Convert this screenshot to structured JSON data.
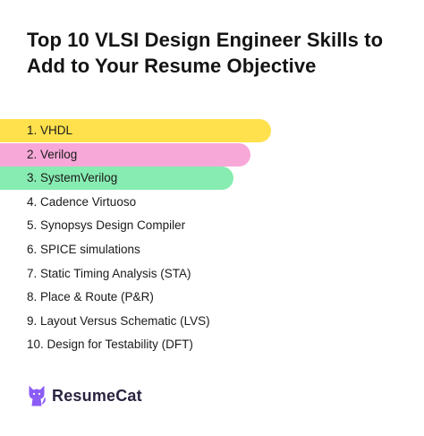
{
  "title": "Top 10 VLSI Design Engineer Skills to Add to Your Resume Objective",
  "skills": [
    {
      "label": "1. VHDL",
      "color": "#ffe14d",
      "fill": 0.64
    },
    {
      "label": "2. Verilog",
      "color": "#f7a8d8",
      "fill": 0.59
    },
    {
      "label": "3. SystemVerilog",
      "color": "#87ecb1",
      "fill": 0.55
    },
    {
      "label": "4. Cadence Virtuoso"
    },
    {
      "label": "5. Synopsys Design Compiler"
    },
    {
      "label": "6. SPICE simulations"
    },
    {
      "label": "7. Static Timing Analysis (STA)"
    },
    {
      "label": "8. Place & Route (P&R)"
    },
    {
      "label": "9. Layout Versus Schematic (LVS)"
    },
    {
      "label": "10. Design for Testability (DFT)"
    }
  ],
  "brand": {
    "name": "ResumeCat",
    "icon": "cat-logo-icon",
    "color": "#8b5cf6"
  }
}
